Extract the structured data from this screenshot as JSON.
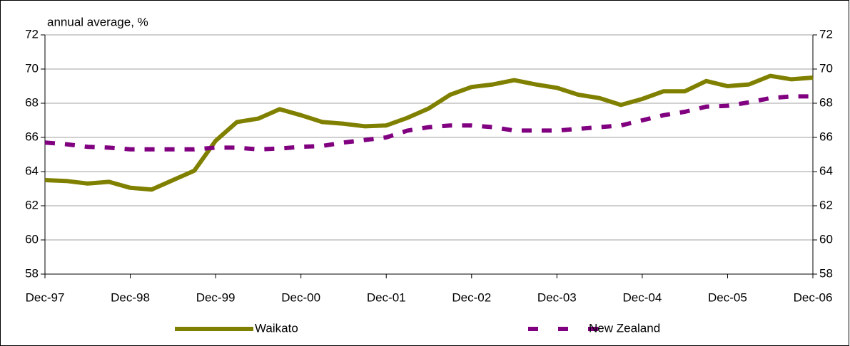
{
  "chart_data": {
    "type": "line",
    "axis_label": "annual average, %",
    "categories": [
      "Dec-97",
      null,
      null,
      null,
      "Dec-98",
      null,
      null,
      null,
      "Dec-99",
      null,
      null,
      null,
      "Dec-00",
      null,
      null,
      null,
      "Dec-01",
      null,
      null,
      null,
      "Dec-02",
      null,
      null,
      null,
      "Dec-03",
      null,
      null,
      null,
      "Dec-04",
      null,
      null,
      null,
      "Dec-05",
      null,
      null,
      null,
      "Dec-06"
    ],
    "series": [
      {
        "name": "Waikato",
        "color": "#808000",
        "style": "solid",
        "values": [
          63.5,
          63.45,
          63.3,
          63.4,
          63.05,
          62.95,
          63.5,
          64.05,
          65.8,
          66.9,
          67.1,
          67.65,
          67.3,
          66.9,
          66.8,
          66.65,
          66.7,
          67.15,
          67.7,
          68.5,
          68.95,
          69.1,
          69.35,
          69.1,
          68.9,
          68.5,
          68.3,
          67.9,
          68.25,
          68.7,
          68.7,
          69.3,
          69.0,
          69.1,
          69.6,
          69.4,
          69.5
        ]
      },
      {
        "name": "New Zealand",
        "color": "#800080",
        "style": "dashed",
        "values": [
          65.7,
          65.6,
          65.45,
          65.4,
          65.3,
          65.3,
          65.3,
          65.3,
          65.4,
          65.4,
          65.3,
          65.35,
          65.45,
          65.5,
          65.7,
          65.85,
          66.0,
          66.4,
          66.6,
          66.7,
          66.7,
          66.6,
          66.4,
          66.4,
          66.4,
          66.5,
          66.6,
          66.7,
          67.0,
          67.3,
          67.5,
          67.8,
          67.85,
          68.05,
          68.3,
          68.4,
          68.4
        ]
      }
    ],
    "ylim": [
      58,
      72
    ],
    "yticks": [
      58,
      60,
      62,
      64,
      66,
      68,
      70,
      72
    ],
    "y2lim": [
      58,
      72
    ],
    "y2ticks": [
      58,
      60,
      62,
      64,
      66,
      68,
      70,
      72
    ],
    "grid": true,
    "legend": "bottom"
  }
}
